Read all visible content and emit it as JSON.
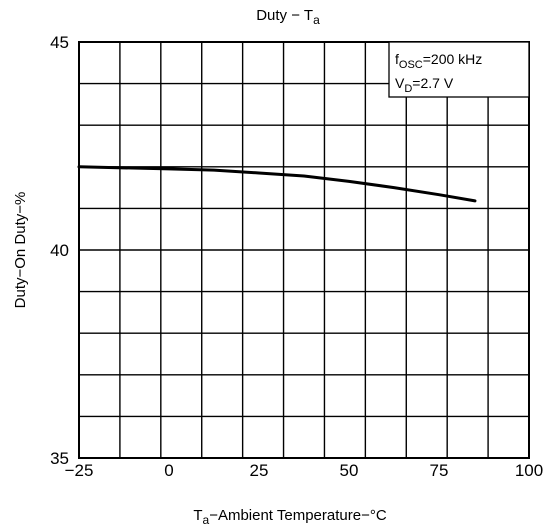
{
  "chart_data": {
    "type": "line",
    "title": {
      "main": "Duty",
      "sep": "−",
      "var": "T",
      "sub": "a"
    },
    "xlabel": {
      "var": "T",
      "sub": "a",
      "text": "−Ambient Temperature−°C"
    },
    "ylabel": "Duty−On Duty−%",
    "xlim": [
      -25,
      100
    ],
    "ylim": [
      35,
      45
    ],
    "xticks": [
      -25,
      0,
      25,
      50,
      75,
      100
    ],
    "xtick_labels": [
      "−25",
      "0",
      "25",
      "50",
      "75",
      "100"
    ],
    "yticks": [
      35,
      40,
      45
    ],
    "ytick_labels": [
      "35",
      "40",
      "45"
    ],
    "grid": true,
    "x_divisions": 11,
    "y_divisions": 10,
    "annotation": {
      "line1": {
        "var": "f",
        "sub": "OSC",
        "text": "=200 kHz"
      },
      "line2": {
        "var": "V",
        "sub": "D",
        "text": "=2.7 V"
      }
    },
    "series": [
      {
        "x": [
          -25,
          0,
          12.5,
          25,
          37.5,
          50,
          62.5,
          75,
          85
        ],
        "y": [
          42.0,
          41.95,
          41.92,
          41.85,
          41.78,
          41.65,
          41.5,
          41.33,
          41.18
        ]
      }
    ]
  }
}
